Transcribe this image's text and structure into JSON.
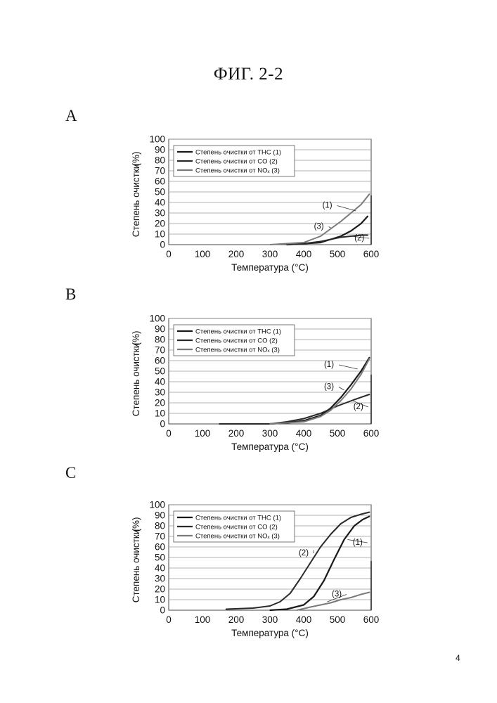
{
  "page": {
    "title": "ФИГ. 2-2",
    "page_number": "4"
  },
  "chart_data": [
    {
      "panel": "A",
      "type": "line",
      "xlabel": "Температура (°С)",
      "ylabel": "Степень очистки",
      "ylabel_unit": "(%)",
      "xlim": [
        0,
        600
      ],
      "ylim": [
        0,
        100
      ],
      "x_ticks": [
        0,
        100,
        200,
        300,
        400,
        500,
        600
      ],
      "y_ticks": [
        0,
        10,
        20,
        30,
        40,
        50,
        60,
        70,
        80,
        90,
        100
      ],
      "grid": true,
      "legend_placement": "top-left",
      "series": [
        {
          "name": "Степень очистки от THC (1)",
          "color": "#1a1a1a",
          "x": [
            350,
            400,
            450,
            480,
            510,
            540,
            570,
            590
          ],
          "y": [
            0,
            1,
            2,
            5,
            8,
            13,
            20,
            27
          ]
        },
        {
          "name": "Степень очистки от CO (2)",
          "color": "#2a2a2a",
          "x": [
            350,
            400,
            450,
            480,
            510,
            540,
            570,
            590
          ],
          "y": [
            0,
            1,
            3,
            5,
            7,
            8,
            9,
            9
          ]
        },
        {
          "name": "Степень очистки от NOₓ (3)",
          "color": "#7a7a7a",
          "x": [
            300,
            350,
            400,
            450,
            480,
            510,
            540,
            570,
            595
          ],
          "y": [
            0,
            1,
            2,
            8,
            15,
            22,
            30,
            38,
            48
          ]
        }
      ],
      "annotations": [
        {
          "text": "(1)",
          "x": 470,
          "y": 35,
          "tx": 555,
          "ty": 32
        },
        {
          "text": "(3)",
          "x": 445,
          "y": 15,
          "tx": 480,
          "ty": 16
        },
        {
          "text": "(2)",
          "x": 565,
          "y": 4,
          "tx": 540,
          "ty": 8
        }
      ]
    },
    {
      "panel": "B",
      "type": "line",
      "xlabel": "Температура (°С)",
      "ylabel": "Степень очистки",
      "ylabel_unit": "(%)",
      "xlim": [
        0,
        600
      ],
      "ylim": [
        0,
        100
      ],
      "x_ticks": [
        0,
        100,
        200,
        300,
        400,
        500,
        600
      ],
      "y_ticks": [
        0,
        10,
        20,
        30,
        40,
        50,
        60,
        70,
        80,
        90,
        100
      ],
      "grid": true,
      "legend_placement": "top-left",
      "series": [
        {
          "name": "Степень очистки от THC (1)",
          "color": "#1a1a1a",
          "x": [
            300,
            350,
            400,
            450,
            480,
            510,
            540,
            570,
            595
          ],
          "y": [
            0,
            1,
            3,
            8,
            15,
            25,
            37,
            50,
            63
          ]
        },
        {
          "name": "Степень очистки от CO (2)",
          "color": "#2a2a2a",
          "x": [
            150,
            250,
            300,
            350,
            400,
            450,
            500,
            550,
            595
          ],
          "y": [
            0,
            0,
            0,
            2,
            5,
            10,
            17,
            23,
            28
          ]
        },
        {
          "name": "Степень очистки от NOₓ (3)",
          "color": "#7a7a7a",
          "x": [
            300,
            350,
            400,
            450,
            480,
            510,
            540,
            570,
            595
          ],
          "y": [
            0,
            1,
            2,
            7,
            13,
            22,
            33,
            47,
            62
          ]
        }
      ],
      "annotations": [
        {
          "text": "(1)",
          "x": 475,
          "y": 54,
          "tx": 560,
          "ty": 52
        },
        {
          "text": "(3)",
          "x": 475,
          "y": 33,
          "tx": 520,
          "ty": 32
        },
        {
          "text": "(2)",
          "x": 562,
          "y": 14,
          "tx": 545,
          "ty": 22
        }
      ]
    },
    {
      "panel": "C",
      "type": "line",
      "xlabel": "Температура (°С)",
      "ylabel": "Степень очистки",
      "ylabel_unit": "(%)",
      "xlim": [
        0,
        600
      ],
      "ylim": [
        0,
        100
      ],
      "x_ticks": [
        0,
        100,
        200,
        300,
        400,
        500,
        600
      ],
      "y_ticks": [
        0,
        10,
        20,
        30,
        40,
        50,
        60,
        70,
        80,
        90,
        100
      ],
      "grid": true,
      "legend_placement": "top-left",
      "series": [
        {
          "name": "Степень очистки от THC (1)",
          "color": "#1a1a1a",
          "x": [
            300,
            350,
            400,
            430,
            460,
            490,
            520,
            550,
            575,
            595
          ],
          "y": [
            0,
            1,
            5,
            13,
            28,
            48,
            67,
            80,
            86,
            89
          ]
        },
        {
          "name": "Степень очистки от CO (2)",
          "color": "#2a2a2a",
          "x": [
            170,
            250,
            300,
            330,
            360,
            390,
            420,
            450,
            480,
            510,
            540,
            570,
            595
          ],
          "y": [
            1,
            2,
            4,
            8,
            16,
            30,
            45,
            60,
            72,
            82,
            88,
            91,
            93
          ]
        },
        {
          "name": "Степень очистки от NOₓ (3)",
          "color": "#7a7a7a",
          "x": [
            380,
            420,
            450,
            480,
            510,
            540,
            570,
            595
          ],
          "y": [
            0,
            3,
            5,
            7,
            10,
            12,
            15,
            17
          ]
        }
      ],
      "annotations": [
        {
          "text": "(2)",
          "x": 400,
          "y": 52,
          "tx": 430,
          "ty": 57
        },
        {
          "text": "(1)",
          "x": 560,
          "y": 62,
          "tx": 530,
          "ty": 67
        },
        {
          "text": "(3)",
          "x": 498,
          "y": 13,
          "tx": 470,
          "ty": 8
        }
      ]
    }
  ]
}
